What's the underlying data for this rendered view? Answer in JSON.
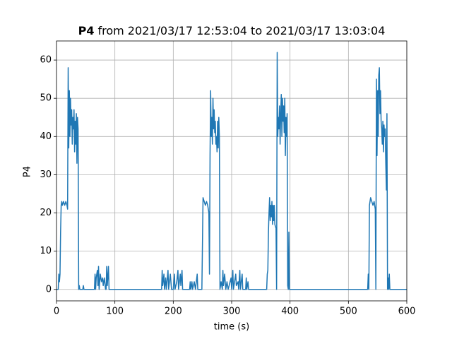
{
  "chart_data": {
    "type": "line",
    "title": [
      "P4",
      "from 2021/03/17 12:53:04 to 2021/03/17 13:03:04"
    ],
    "xlabel": "time (s)",
    "ylabel": "P4",
    "xlim": [
      0,
      600
    ],
    "ylim": [
      -3,
      65
    ],
    "xticks": [
      0,
      100,
      200,
      300,
      400,
      500,
      600
    ],
    "yticks": [
      0,
      10,
      20,
      30,
      40,
      50,
      60
    ],
    "grid": true,
    "x": [
      0,
      3,
      4,
      5,
      6,
      7,
      8,
      9,
      10,
      12,
      14,
      16,
      18,
      19,
      20,
      21,
      22,
      23,
      24,
      25,
      26,
      27,
      28,
      29,
      30,
      31,
      32,
      33,
      34,
      35,
      36,
      37,
      38,
      39,
      40,
      45,
      46,
      47,
      65,
      66,
      67,
      68,
      70,
      71,
      72,
      73,
      75,
      77,
      79,
      80,
      82,
      84,
      85,
      86,
      87,
      89,
      90,
      180,
      181,
      182,
      184,
      185,
      187,
      188,
      191,
      192,
      195,
      197,
      200,
      202,
      203,
      206,
      208,
      209,
      212,
      213,
      215,
      216,
      228,
      229,
      230,
      232,
      233,
      236,
      238,
      241,
      242,
      249,
      250,
      251,
      253,
      255,
      257,
      259,
      261,
      262,
      263,
      264,
      265,
      266,
      267,
      268,
      269,
      270,
      271,
      272,
      273,
      274,
      275,
      276,
      277,
      278,
      279,
      280,
      282,
      284,
      285,
      286,
      288,
      290,
      292,
      294,
      299,
      300,
      302,
      303,
      307,
      308,
      311,
      312,
      314,
      315,
      318,
      319,
      324,
      325,
      326,
      328,
      329,
      360,
      361,
      362,
      363,
      364,
      365,
      366,
      367,
      368,
      369,
      370,
      371,
      372,
      373,
      374,
      376,
      377,
      378,
      379,
      380,
      381,
      382,
      383,
      384,
      385,
      386,
      387,
      388,
      389,
      390,
      391,
      392,
      393,
      394,
      395,
      396,
      397,
      398,
      399,
      400,
      533,
      534,
      535,
      536,
      538,
      540,
      542,
      544,
      546,
      547,
      548,
      549,
      550,
      551,
      552,
      553,
      554,
      555,
      556,
      557,
      558,
      559,
      560,
      561,
      562,
      563,
      564,
      565,
      566,
      567,
      568,
      569,
      570,
      571,
      600
    ],
    "series": [
      {
        "name": "P4",
        "color": "#1f77b4",
        "values": [
          0,
          0,
          4,
          2,
          4,
          15,
          22,
          23,
          22,
          23,
          22,
          23,
          22,
          21,
          58,
          37,
          52,
          40,
          50,
          43,
          47,
          38,
          45,
          42,
          47,
          36,
          44,
          38,
          46,
          33,
          45,
          42,
          0,
          1,
          0,
          0,
          1,
          0,
          0,
          4,
          0,
          3,
          5,
          1,
          6,
          0,
          4,
          2,
          3,
          1,
          3,
          0,
          0,
          6,
          1,
          6,
          0,
          0,
          5,
          1,
          4,
          0,
          3,
          0,
          5,
          0,
          4,
          0,
          0,
          4,
          0,
          2,
          5,
          0,
          4,
          1,
          5,
          0,
          0,
          2,
          0,
          2,
          0,
          2,
          0,
          4,
          0,
          0,
          12,
          24,
          23,
          22,
          23,
          22,
          20,
          4,
          35,
          52,
          40,
          45,
          38,
          50,
          42,
          47,
          41,
          44,
          38,
          40,
          36,
          44,
          37,
          45,
          40,
          0,
          2,
          0,
          5,
          1,
          4,
          0,
          2,
          0,
          3,
          0,
          5,
          0,
          4,
          1,
          2,
          0,
          5,
          0,
          4,
          0,
          0,
          3,
          0,
          2,
          0,
          0,
          4,
          5,
          15,
          20,
          24,
          18,
          22,
          19,
          23,
          17,
          22,
          18,
          22,
          17,
          16,
          0,
          62,
          40,
          45,
          42,
          48,
          38,
          46,
          51,
          40,
          50,
          44,
          48,
          41,
          50,
          35,
          45,
          40,
          46,
          1,
          0,
          15,
          0,
          0,
          0,
          4,
          0,
          22,
          24,
          23,
          22,
          23,
          21,
          0,
          55,
          35,
          52,
          40,
          56,
          58,
          46,
          52,
          44,
          42,
          38,
          44,
          36,
          43,
          40,
          42,
          33,
          26,
          46,
          0,
          3,
          0,
          4,
          0,
          0
        ]
      }
    ]
  }
}
